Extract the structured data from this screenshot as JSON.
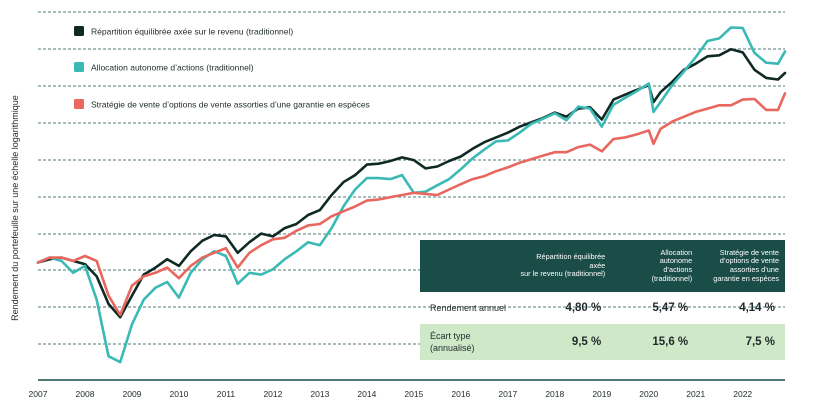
{
  "chart_data": {
    "type": "line",
    "ylabel": "Rendement du portefeuille sur une échelle logarithmique",
    "xticks": [
      "2007",
      "2008",
      "2009",
      "2010",
      "2011",
      "2012",
      "2013",
      "2014",
      "2015",
      "2016",
      "2017",
      "2018",
      "2019",
      "2020",
      "2021",
      "2022"
    ],
    "x_range": [
      2007.0,
      2022.9
    ],
    "y_scale": "log",
    "grid": "horizontal dashed",
    "legend_position": "top-left",
    "series": [
      {
        "name": "Répartition équilibrée axée sur le revenu (traditionnel)",
        "color": "#0f2a25",
        "x": [
          2007.0,
          2007.25,
          2007.5,
          2007.75,
          2008.0,
          2008.25,
          2008.5,
          2008.75,
          2009.0,
          2009.25,
          2009.5,
          2009.75,
          2010.0,
          2010.25,
          2010.5,
          2010.75,
          2011.0,
          2011.25,
          2011.5,
          2011.75,
          2012.0,
          2012.25,
          2012.5,
          2012.75,
          2013.0,
          2013.25,
          2013.5,
          2013.75,
          2014.0,
          2014.25,
          2014.5,
          2014.75,
          2015.0,
          2015.25,
          2015.5,
          2015.75,
          2016.0,
          2016.25,
          2016.5,
          2016.75,
          2017.0,
          2017.25,
          2017.5,
          2017.75,
          2018.0,
          2018.25,
          2018.5,
          2018.75,
          2019.0,
          2019.25,
          2019.5,
          2019.75,
          2020.0,
          2020.1,
          2020.25,
          2020.5,
          2020.75,
          2021.0,
          2021.25,
          2021.5,
          2021.75,
          2022.0,
          2022.25,
          2022.5,
          2022.75,
          2022.9
        ],
        "values": [
          100,
          102,
          103,
          101,
          99,
          92,
          78,
          72,
          82,
          93,
          97,
          102,
          98,
          107,
          114,
          118,
          117,
          106,
          113,
          119,
          117,
          123,
          126,
          133,
          137,
          150,
          162,
          169,
          180,
          181,
          184,
          188,
          185,
          176,
          178,
          184,
          189,
          198,
          206,
          212,
          218,
          226,
          232,
          238,
          246,
          240,
          252,
          254,
          236,
          266,
          274,
          282,
          290,
          262,
          278,
          296,
          318,
          330,
          345,
          347,
          360,
          353,
          318,
          303,
          300,
          312
        ]
      },
      {
        "name": "Allocation autonome d’actions (traditionnel)",
        "color": "#3ab9b5",
        "x": [
          2007.0,
          2007.25,
          2007.5,
          2007.75,
          2008.0,
          2008.25,
          2008.5,
          2008.75,
          2009.0,
          2009.25,
          2009.5,
          2009.75,
          2010.0,
          2010.25,
          2010.5,
          2010.75,
          2011.0,
          2011.25,
          2011.5,
          2011.75,
          2012.0,
          2012.25,
          2012.5,
          2012.75,
          2013.0,
          2013.25,
          2013.5,
          2013.75,
          2014.0,
          2014.25,
          2014.5,
          2014.75,
          2015.0,
          2015.25,
          2015.5,
          2015.75,
          2016.0,
          2016.25,
          2016.5,
          2016.75,
          2017.0,
          2017.25,
          2017.5,
          2017.75,
          2018.0,
          2018.25,
          2018.5,
          2018.75,
          2019.0,
          2019.25,
          2019.5,
          2019.75,
          2020.0,
          2020.1,
          2020.25,
          2020.5,
          2020.75,
          2021.0,
          2021.25,
          2021.5,
          2021.75,
          2022.0,
          2022.25,
          2022.5,
          2022.75,
          2022.9
        ],
        "values": [
          100,
          103,
          101,
          94,
          98,
          80,
          57,
          55,
          69,
          80,
          86,
          89,
          81,
          94,
          102,
          107,
          104,
          88,
          94,
          93,
          96,
          102,
          107,
          113,
          111,
          123,
          140,
          155,
          166,
          166,
          165,
          169,
          152,
          153,
          159,
          165,
          175,
          187,
          197,
          207,
          208,
          218,
          230,
          237,
          245,
          235,
          255,
          252,
          226,
          258,
          269,
          280,
          293,
          247,
          262,
          290,
          315,
          343,
          378,
          384,
          410,
          409,
          352,
          332,
          330,
          355
        ]
      },
      {
        "name": "Stratégie de vente d’options de vente assorties d’une garantie en espèces",
        "color": "#e8675f",
        "x": [
          2007.0,
          2007.25,
          2007.5,
          2007.75,
          2008.0,
          2008.25,
          2008.5,
          2008.75,
          2009.0,
          2009.25,
          2009.5,
          2009.75,
          2010.0,
          2010.25,
          2010.5,
          2010.75,
          2011.0,
          2011.25,
          2011.5,
          2011.75,
          2012.0,
          2012.25,
          2012.5,
          2012.75,
          2013.0,
          2013.25,
          2013.5,
          2013.75,
          2014.0,
          2014.25,
          2014.5,
          2014.75,
          2015.0,
          2015.25,
          2015.5,
          2015.75,
          2016.0,
          2016.25,
          2016.5,
          2016.75,
          2017.0,
          2017.25,
          2017.5,
          2017.75,
          2018.0,
          2018.25,
          2018.5,
          2018.75,
          2019.0,
          2019.25,
          2019.5,
          2019.75,
          2020.0,
          2020.1,
          2020.25,
          2020.5,
          2020.75,
          2021.0,
          2021.25,
          2021.5,
          2021.75,
          2022.0,
          2022.25,
          2022.5,
          2022.75,
          2022.9
        ],
        "values": [
          100,
          103,
          103,
          101,
          104,
          101,
          82,
          73,
          87,
          92,
          94,
          97,
          91,
          98,
          103,
          106,
          109,
          97,
          106,
          111,
          115,
          116,
          121,
          125,
          126,
          132,
          136,
          140,
          145,
          146,
          148,
          150,
          152,
          151,
          150,
          155,
          160,
          165,
          168,
          173,
          177,
          182,
          186,
          190,
          194,
          194,
          200,
          203,
          195,
          210,
          212,
          216,
          221,
          204,
          223,
          233,
          240,
          247,
          252,
          257,
          257,
          266,
          267,
          250,
          250,
          276
        ]
      }
    ]
  },
  "table": {
    "columns": [
      "Répartition équilibrée axée sur le revenu (traditionnel)",
      "Allocation autonome d’actions (traditionnel)",
      "Stratégie de vente d’options de vente assorties d’une garantie en espèces"
    ],
    "columns_display": [
      [
        "Répartition équilibrée axée",
        "sur le revenu (traditionnel)"
      ],
      [
        "Allocation",
        "autonome",
        "d’actions",
        "(traditionnel)"
      ],
      [
        "Stratégie de vente",
        "d’options de vente",
        "assorties d’une",
        "garantie en espèces"
      ]
    ],
    "rows": [
      {
        "label": "Rendement annuel",
        "values": [
          "4,80 %",
          "5,47 %",
          "4,14 %"
        ]
      },
      {
        "label_lines": [
          "Écart type",
          "(annualisé)"
        ],
        "values": [
          "9,5 %",
          "15,6 %",
          "7,5 %"
        ]
      }
    ]
  }
}
